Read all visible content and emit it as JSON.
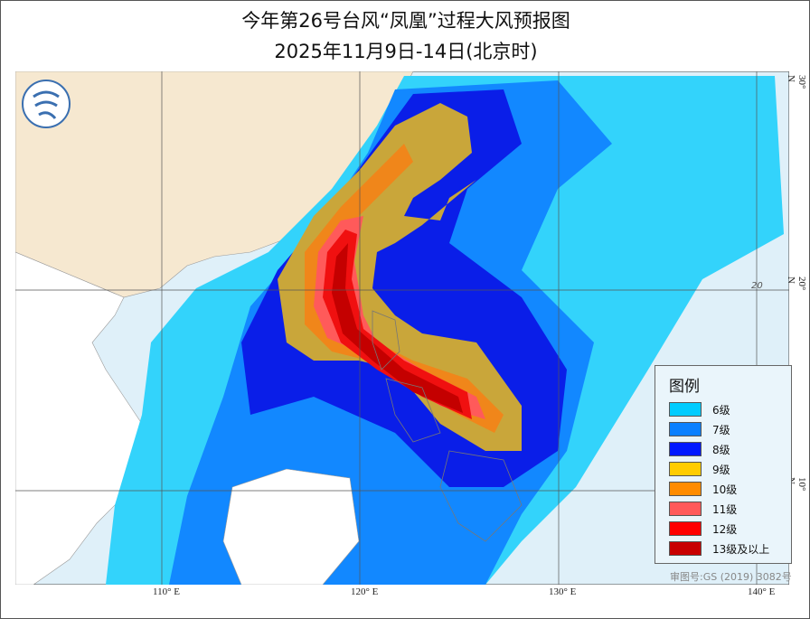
{
  "title": "今年第26号台风“凤凰”过程大风预报图",
  "subtitle": "2025年11月9日-14日(北京时)",
  "axes": {
    "longitude_labels": [
      "110° E",
      "120° E",
      "130° E",
      "140° E"
    ],
    "latitude_labels": [
      "30° N",
      "20° N",
      "10° N"
    ],
    "inner_label": "20"
  },
  "legend": {
    "title": "图例",
    "items": [
      {
        "label": "6级",
        "color": "#00ccff"
      },
      {
        "label": "7级",
        "color": "#0a80ff"
      },
      {
        "label": "8级",
        "color": "#0018ff"
      },
      {
        "label": "9级",
        "color": "#ffcc00"
      },
      {
        "label": "10级",
        "color": "#ff8c00"
      },
      {
        "label": "11级",
        "color": "#ff5a5a"
      },
      {
        "label": "12级",
        "color": "#ff0000"
      },
      {
        "label": "13级及以上",
        "color": "#c80000"
      }
    ]
  },
  "approval_number": "审图号:GS (2019) 3082号",
  "logo_icon": "cma-typhoon-logo"
}
